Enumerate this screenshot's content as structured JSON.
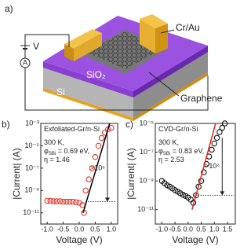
{
  "diagram": {
    "panel_label": "a)",
    "labels": {
      "metal": "Cr/Au",
      "oxide": "SiO₂",
      "substrate": "Si",
      "graphene": "Graphene",
      "voltage": "V",
      "ammeter": "A"
    }
  },
  "chart_data": [
    {
      "type": "scatter",
      "panel_label": "b)",
      "log_y": true,
      "xlabel": "Voltage (V)",
      "ylabel": "|Current| (A)",
      "xlim": [
        -1.2,
        1.2
      ],
      "ylim": [
        1e-12,
        0.001
      ],
      "xticks": [
        {
          "value": -1,
          "label": "-1.0"
        },
        {
          "value": -0.5,
          "label": "-0.5"
        },
        {
          "value": 0,
          "label": "0.0"
        },
        0.5,
        {
          "value": 1,
          "label": "1.0"
        }
      ],
      "yticks": [
        {
          "value": 1e-11,
          "label": "10⁻¹¹"
        },
        {
          "value": 1e-09,
          "label": "10⁻⁹"
        },
        {
          "value": 1e-07,
          "label": "10⁻⁷"
        },
        {
          "value": 1e-05,
          "label": "10⁻⁵"
        },
        {
          "value": 0.001,
          "label": "10⁻³"
        }
      ],
      "annotations": [
        "Exfoliated-Gr/n-Si",
        "300 K,",
        "φ<sub>SBi</sub> = 0.69 eV,",
        "η = 1.46"
      ],
      "ratio": {
        "label": ">10⁶",
        "x": 0.88,
        "from": 0.0001,
        "to": 1e-10
      },
      "series": [
        {
          "style": "circle",
          "color": "#e3261c",
          "x": [
            -1.0,
            -0.9,
            -0.8,
            -0.7,
            -0.6,
            -0.5,
            -0.4,
            -0.3,
            -0.2,
            -0.1,
            0.0,
            0.1,
            0.15,
            0.2,
            0.3,
            0.4,
            0.5,
            0.6,
            0.7,
            0.8,
            0.9,
            1.0
          ],
          "values": [
            1.2e-10,
            1.2e-10,
            1.1e-10,
            1.1e-10,
            1.1e-10,
            1e-10,
            1e-10,
            1e-10,
            1e-10,
            9e-11,
            8e-11,
            5e-11,
            1e-11,
            1e-09,
            1e-08,
            1e-07,
            1e-06,
            1e-05,
            5e-05,
            0.00015,
            0.0003,
            0.0004
          ]
        },
        {
          "style": "line",
          "color": "#000000",
          "x": [
            0.12,
            0.95
          ],
          "values": [
            1e-11,
            0.001
          ]
        }
      ]
    },
    {
      "type": "scatter",
      "panel_label": "c)",
      "log_y": true,
      "xlabel": "Voltage (V)",
      "ylabel": "|Current| (A)",
      "xlim": [
        -1.25,
        1.8
      ],
      "ylim": [
        1e-12,
        1e-05
      ],
      "xticks": [
        {
          "value": -1,
          "label": "-1.0"
        },
        {
          "value": -0.5,
          "label": "-0.5"
        },
        {
          "value": 0,
          "label": "0.0"
        },
        0.5,
        {
          "value": 1,
          "label": "1.0"
        },
        1.5
      ],
      "yticks": [
        {
          "value": 1e-11,
          "label": "10⁻¹¹"
        },
        {
          "value": 1e-09,
          "label": "10⁻⁹"
        },
        {
          "value": 1e-07,
          "label": "10⁻⁷"
        },
        {
          "value": 1e-05,
          "label": "10⁻⁵"
        }
      ],
      "annotations": [
        "CVD-Gr/n-Si",
        "300 K,",
        "φ<sub>SBi</sub> = 0.83 eV,",
        "η = 2.53"
      ],
      "ratio": {
        "label": ">10⁴",
        "x": 1.3,
        "from": 1e-06,
        "to": 1e-10
      },
      "series": [
        {
          "style": "circle",
          "color": "#000000",
          "x": [
            -1.0,
            -0.9,
            -0.8,
            -0.7,
            -0.6,
            -0.5,
            -0.4,
            -0.3,
            -0.2,
            -0.1,
            0.0,
            0.1,
            0.2,
            0.3,
            0.4,
            0.5,
            0.6,
            0.7,
            0.8,
            0.9,
            1.0,
            1.1,
            1.2,
            1.3,
            1.4
          ],
          "values": [
            1e-09,
            7e-10,
            5e-10,
            4e-10,
            3e-10,
            2.3e-10,
            1.8e-10,
            1.4e-10,
            1.1e-10,
            9e-11,
            7e-11,
            5e-11,
            3e-11,
            1e-10,
            4e-10,
            1e-09,
            4e-09,
            1.5e-08,
            5e-08,
            1.5e-07,
            4e-07,
            1e-06,
            2.5e-06,
            5e-06,
            1e-05
          ]
        },
        {
          "style": "line",
          "color": "#e3261c",
          "x": [
            0.15,
            1.05
          ],
          "values": [
            1e-11,
            1e-05
          ]
        }
      ]
    }
  ]
}
